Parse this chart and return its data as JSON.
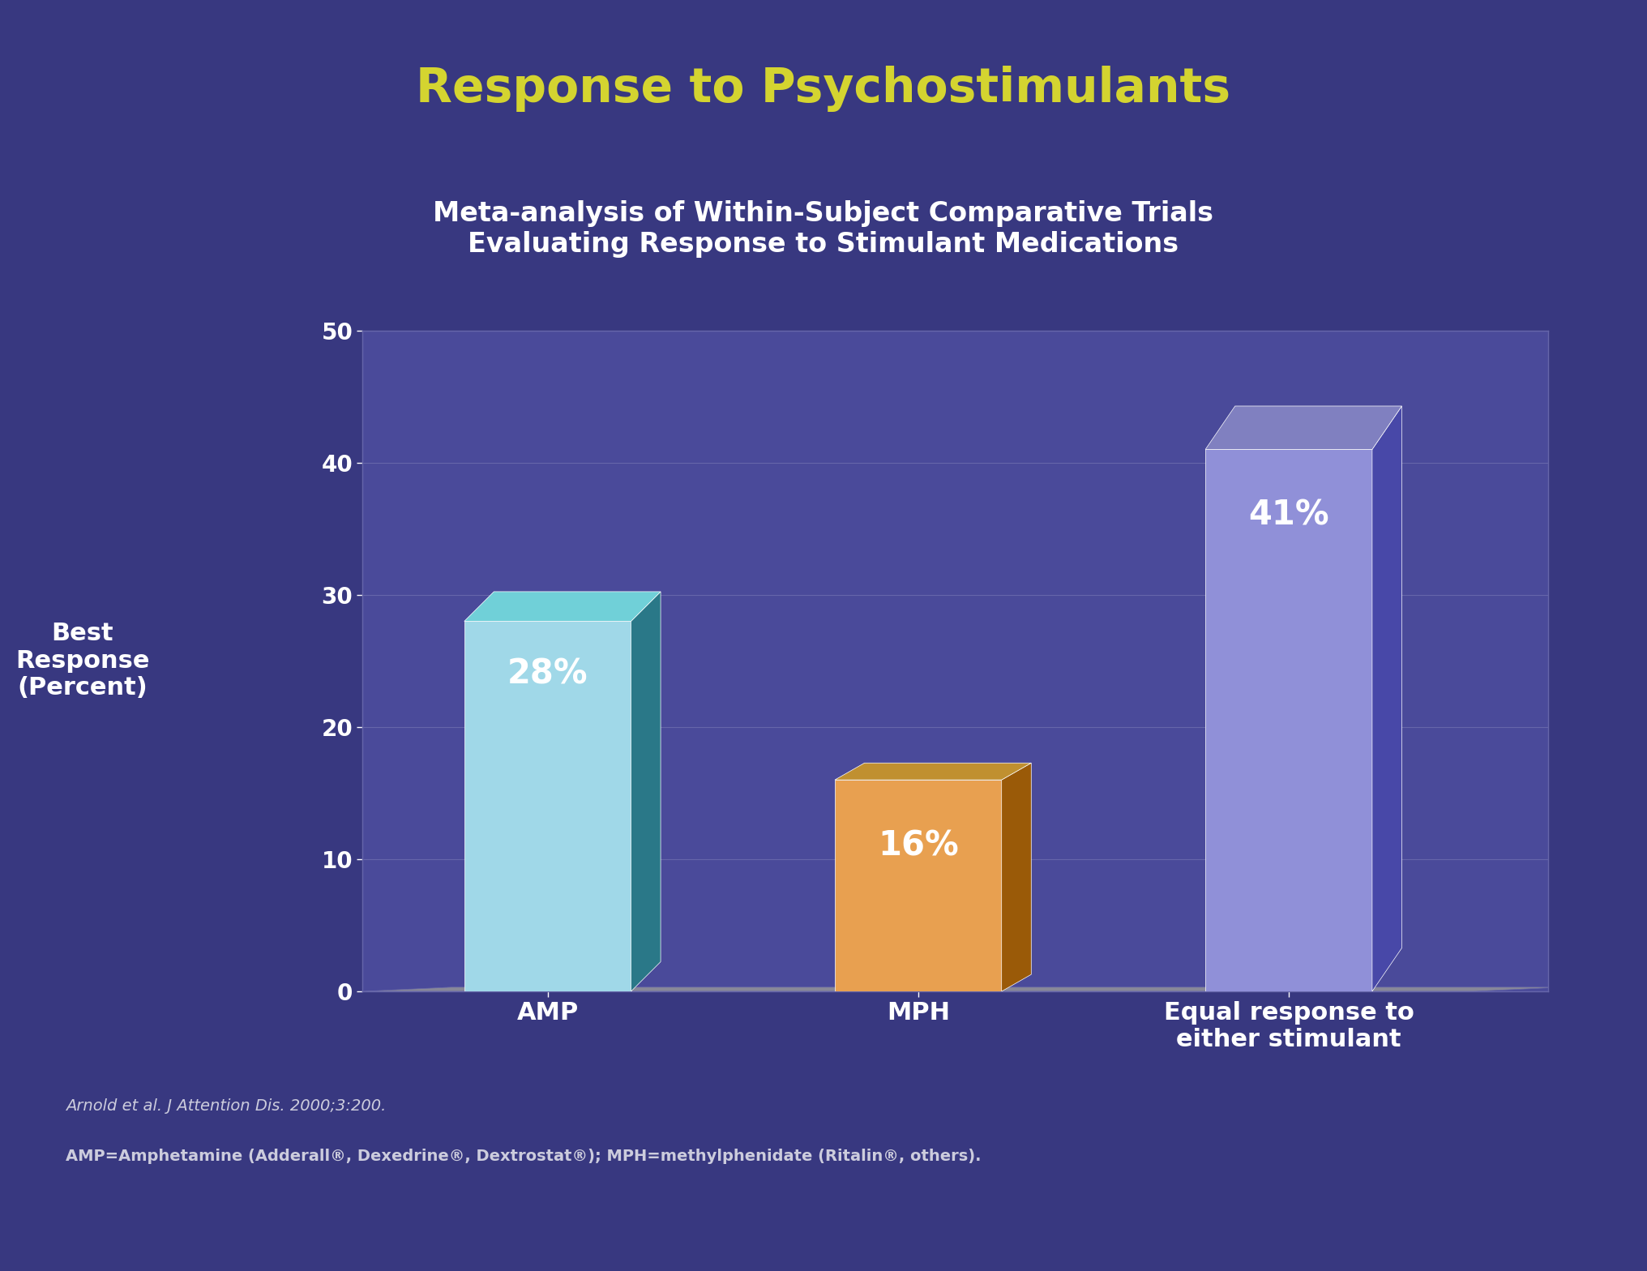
{
  "title": "Response to Psychostimulants",
  "subtitle_line1": "Meta-analysis of Within-Subject Comparative Trials",
  "subtitle_line2": "Evaluating Response to Stimulant Medications",
  "ylabel": "Best\nResponse\n(Percent)",
  "categories": [
    "AMP",
    "MPH",
    "Equal response to\neither stimulant"
  ],
  "values": [
    28,
    16,
    41
  ],
  "value_labels": [
    "28%",
    "16%",
    "41%"
  ],
  "ylim": [
    0,
    50
  ],
  "yticks": [
    0,
    10,
    20,
    30,
    40,
    50
  ],
  "background_color": "#383880",
  "plot_bg_color": "#4a4a9a",
  "grid_color": "#6666aa",
  "bar_colors": [
    "#5ab8c8",
    "#d4820a",
    "#7070c8"
  ],
  "bar_face_colors": [
    "#a0d8e8",
    "#e8a050",
    "#9090d8"
  ],
  "bar_side_colors": [
    "#2a7888",
    "#9a5a08",
    "#4848a8"
  ],
  "bar_top_colors": [
    "#70d0d8",
    "#c09030",
    "#8080c0"
  ],
  "title_color": "#d4d430",
  "subtitle_color": "#ffffff",
  "tick_label_color": "#ffffff",
  "value_label_color": "#ffffff",
  "xlabel_color": "#ffffff",
  "ylabel_color": "#ffffff",
  "footnote_line1": "Arnold et al. J Attention Dis. 2000;3:200.",
  "footnote_line2": "AMP=Amphetamine (Adderall®, Dexedrine®, Dextrostat®); MPH=methylphenidate (Ritalin®, others).",
  "footnote_color": "#ccccdd",
  "title_fontsize": 42,
  "subtitle_fontsize": 24,
  "value_label_fontsize": 30,
  "tick_fontsize": 20,
  "xlabel_fontsize": 22,
  "ylabel_fontsize": 22,
  "footnote_fontsize": 14
}
